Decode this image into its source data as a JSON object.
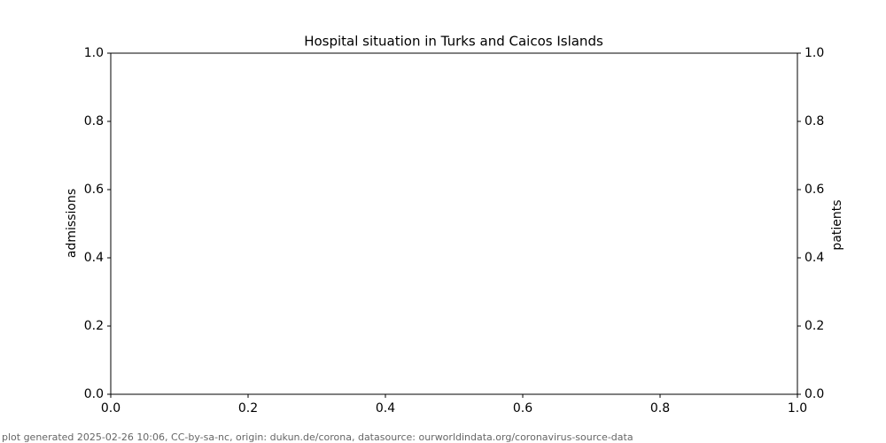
{
  "chart_data": {
    "type": "line",
    "title": "Hospital situation in Turks and Caicos Islands",
    "ylabel": "admissions",
    "y2label": "patients",
    "series": [],
    "xlim": [
      0,
      1
    ],
    "ylim": [
      0,
      1
    ],
    "y2lim": [
      0,
      1
    ],
    "xticks": [
      {
        "value": 0,
        "label": "0.0"
      },
      0.2,
      0.4,
      0.6,
      0.8,
      {
        "value": 1,
        "label": "1.0"
      }
    ],
    "yticks": [
      {
        "value": 0,
        "label": "0.0"
      },
      0.2,
      0.4,
      0.6,
      0.8,
      {
        "value": 1,
        "label": "1.0"
      }
    ],
    "y2ticks": [
      {
        "value": 0,
        "label": "0.0"
      },
      0.2,
      0.4,
      0.6,
      0.8,
      {
        "value": 1,
        "label": "1.0"
      }
    ],
    "footer": "plot generated 2025-02-26 10:06, CC-by-sa-nc, origin: dukun.de/corona, datasource: ourworldindata.org/coronavirus-source-data"
  }
}
